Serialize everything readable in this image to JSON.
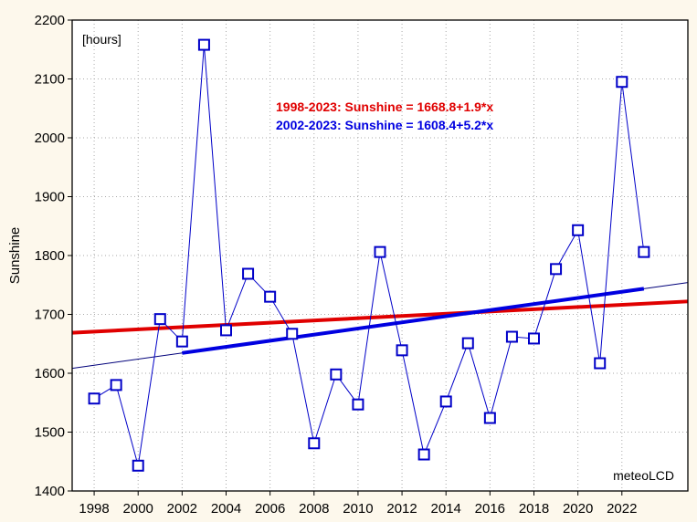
{
  "chart_data": {
    "type": "line",
    "title": "",
    "xlabel": "",
    "ylabel": "Sunshine",
    "unit_label": "[hours]",
    "credit": "meteoLCD",
    "xlim": [
      1997,
      2025
    ],
    "ylim": [
      1400,
      2200
    ],
    "grid": true,
    "x_ticks": [
      1998,
      2000,
      2002,
      2004,
      2006,
      2008,
      2010,
      2012,
      2014,
      2016,
      2018,
      2020,
      2022
    ],
    "y_ticks": [
      1400,
      1500,
      1600,
      1700,
      1800,
      1900,
      2000,
      2100,
      2200
    ],
    "series": [
      {
        "name": "Sunshine",
        "color": "#0000c8",
        "x": [
          1998,
          1999,
          2000,
          2001,
          2002,
          2003,
          2004,
          2005,
          2006,
          2007,
          2008,
          2009,
          2010,
          2011,
          2012,
          2013,
          2014,
          2015,
          2016,
          2017,
          2018,
          2019,
          2020,
          2021,
          2022,
          2023
        ],
        "y": [
          1557,
          1580,
          1443,
          1692,
          1654,
          2158,
          1673,
          1769,
          1730,
          1667,
          1481,
          1598,
          1547,
          1806,
          1639,
          1462,
          1552,
          1651,
          1524,
          1662,
          1659,
          1777,
          1843,
          1617,
          2095,
          1806
        ]
      }
    ],
    "trends": [
      {
        "label": "1998-2023: Sunshine = 1668.8+1.9*x",
        "color": "#e00000",
        "intercept": 1668.8,
        "slope": 1.9,
        "x0": 1997,
        "from": 1997,
        "to": 2025,
        "thick": true
      },
      {
        "label": "2002-2023: Sunshine = 1608.4+5.2*x",
        "color": "#0000e0",
        "intercept": 1608.4,
        "slope": 5.2,
        "x0": 1997,
        "from": 2002,
        "to": 2023,
        "thick": true,
        "extended_thin": true
      }
    ]
  }
}
